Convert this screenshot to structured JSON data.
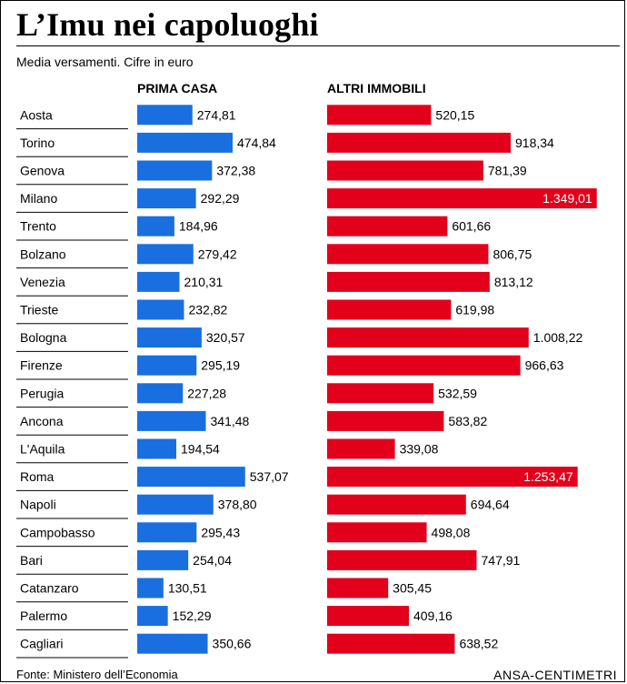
{
  "title": "L’Imu nei capoluoghi",
  "subtitle": "Media versamenti. Cifre in euro",
  "source": "Fonte: Ministero dell’Economia",
  "credit": "ANSA-CENTIMETRI",
  "colors": {
    "prima_casa": "#1a6fe0",
    "altri_immobili": "#e3001b",
    "rule": "#000000"
  },
  "chart_data": {
    "type": "bar",
    "title": "L’Imu nei capoluoghi",
    "subtitle": "Media versamenti. Cifre in euro",
    "categories": [
      "Aosta",
      "Torino",
      "Genova",
      "Milano",
      "Trento",
      "Bolzano",
      "Venezia",
      "Trieste",
      "Bologna",
      "Firenze",
      "Perugia",
      "Ancona",
      "L'Aquila",
      "Roma",
      "Napoli",
      "Campobasso",
      "Bari",
      "Catanzaro",
      "Palermo",
      "Cagliari"
    ],
    "series": [
      {
        "name": "PRIMA CASA",
        "values": [
          274.81,
          474.84,
          372.38,
          292.29,
          184.96,
          279.42,
          210.31,
          232.82,
          320.57,
          295.19,
          227.28,
          341.48,
          194.54,
          537.07,
          378.8,
          295.43,
          254.04,
          130.51,
          152.29,
          350.66
        ],
        "labels": [
          "274,81",
          "474,84",
          "372,38",
          "292,29",
          "184,96",
          "279,42",
          "210,31",
          "232,82",
          "320,57",
          "295,19",
          "227,28",
          "341,48",
          "194,54",
          "537,07",
          "378,80",
          "295,43",
          "254,04",
          "130,51",
          "152,29",
          "350,66"
        ]
      },
      {
        "name": "ALTRI IMMOBILI",
        "values": [
          520.15,
          918.34,
          781.39,
          1349.01,
          601.66,
          806.75,
          813.12,
          619.98,
          1008.22,
          966.63,
          532.59,
          583.82,
          339.08,
          1253.47,
          694.64,
          498.08,
          747.91,
          305.45,
          409.16,
          638.52
        ],
        "labels": [
          "520,15",
          "918,34",
          "781,39",
          "1.349,01",
          "601,66",
          "806,75",
          "813,12",
          "619,98",
          "1.008,22",
          "966,63",
          "532,59",
          "583,82",
          "339,08",
          "1.253,47",
          "694,64",
          "498,08",
          "747,91",
          "305,45",
          "409,16",
          "638,52"
        ]
      }
    ],
    "xlabel": "",
    "ylabel": "",
    "grid": false,
    "legend": "none"
  }
}
